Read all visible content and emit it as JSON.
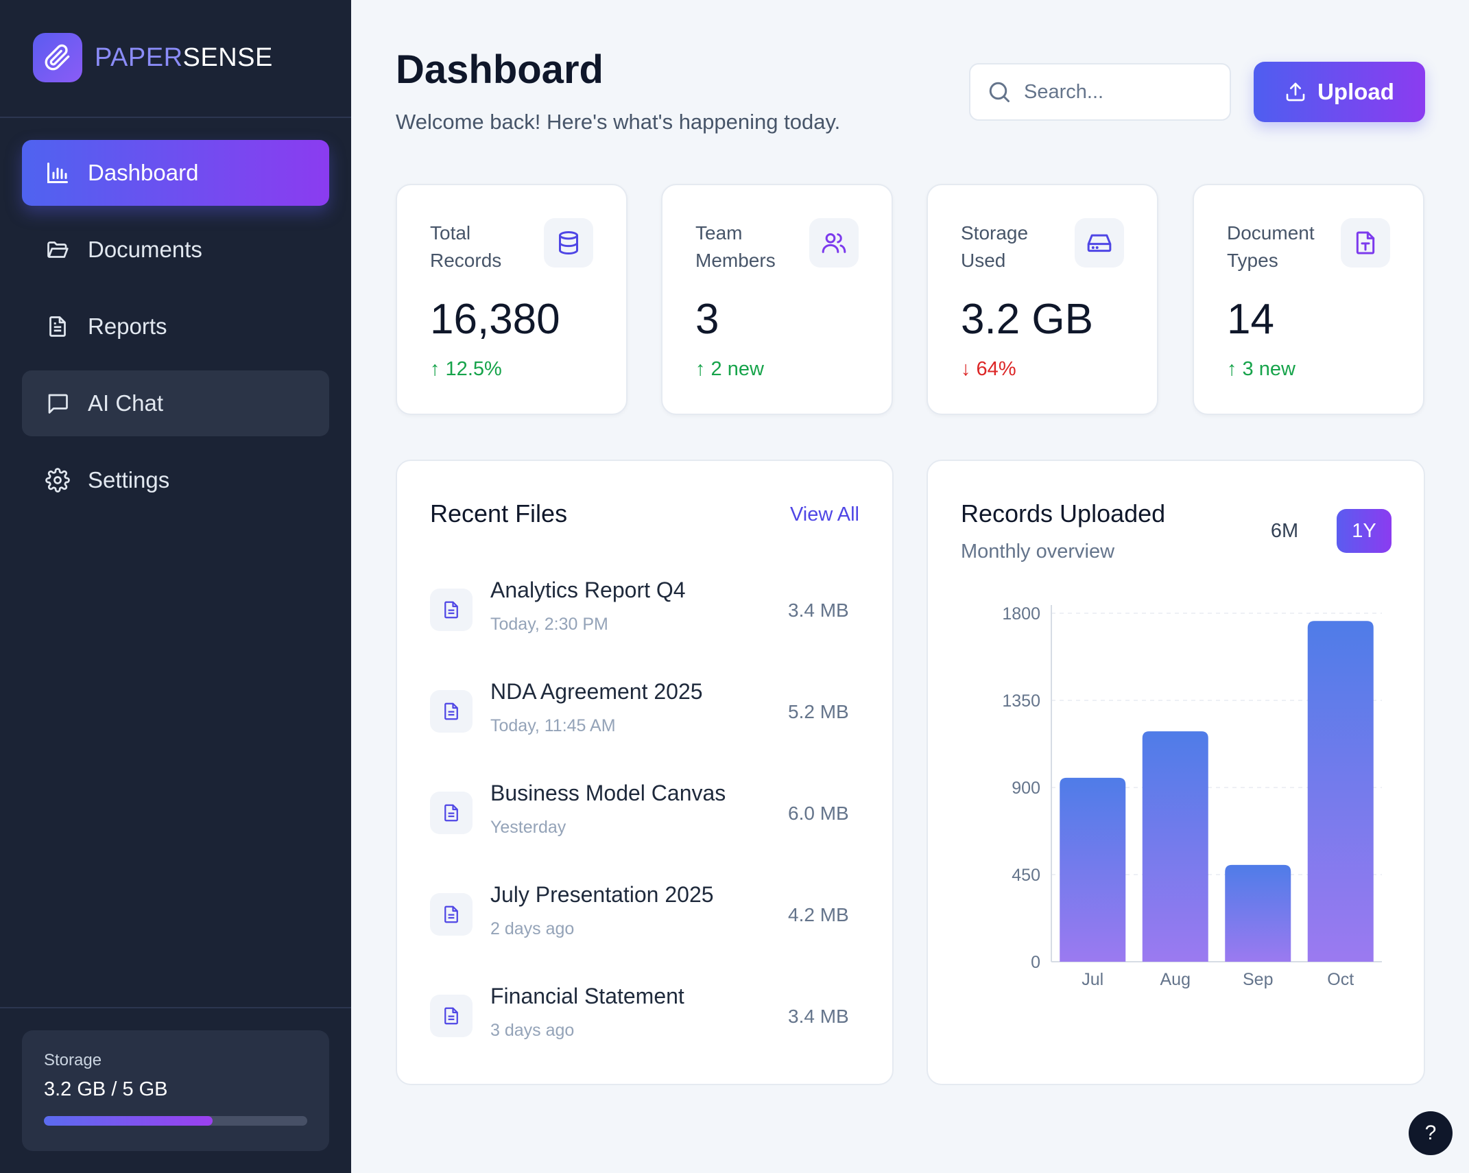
{
  "brand": {
    "part1": "PAPER",
    "part2": "SENSE"
  },
  "sidebar": {
    "items": [
      {
        "label": "Dashboard",
        "icon": "bar-chart-icon"
      },
      {
        "label": "Documents",
        "icon": "folder-icon"
      },
      {
        "label": "Reports",
        "icon": "file-text-icon"
      },
      {
        "label": "AI Chat",
        "icon": "message-icon"
      },
      {
        "label": "Settings",
        "icon": "gear-icon"
      }
    ],
    "storage": {
      "label": "Storage",
      "value": "3.2 GB / 5 GB",
      "used_fraction": 0.64
    }
  },
  "header": {
    "title": "Dashboard",
    "subtitle": "Welcome back! Here's what's happening today.",
    "search_placeholder": "Search...",
    "upload_label": "Upload"
  },
  "stats": [
    {
      "label": "Total Records",
      "value": "16,380",
      "delta": "↑ 12.5%",
      "trend": "up",
      "icon": "database-icon"
    },
    {
      "label": "Team Members",
      "value": "3",
      "delta": "↑ 2 new",
      "trend": "up",
      "icon": "users-icon"
    },
    {
      "label": "Storage Used",
      "value": "3.2 GB",
      "delta": "↓ 64%",
      "trend": "down",
      "icon": "hard-drive-icon"
    },
    {
      "label": "Document Types",
      "value": "14",
      "delta": "↑ 3 new",
      "trend": "up",
      "icon": "file-upload-icon"
    }
  ],
  "recent_files": {
    "title": "Recent Files",
    "view_all": "View All",
    "files": [
      {
        "name": "Analytics Report Q4",
        "time": "Today, 2:30 PM",
        "size": "3.4 MB"
      },
      {
        "name": "NDA Agreement 2025",
        "time": "Today, 11:45 AM",
        "size": "5.2 MB"
      },
      {
        "name": "Business Model Canvas",
        "time": "Yesterday",
        "size": "6.0 MB"
      },
      {
        "name": "July Presentation 2025",
        "time": "2 days ago",
        "size": "4.2 MB"
      },
      {
        "name": "Financial Statement",
        "time": "3 days ago",
        "size": "3.4 MB"
      }
    ]
  },
  "records_panel": {
    "title": "Records Uploaded",
    "subtitle": "Monthly overview",
    "range_options": [
      "6M",
      "1Y"
    ],
    "selected_range": "1Y"
  },
  "chart_data": {
    "type": "bar",
    "categories": [
      "Jul",
      "Aug",
      "Sep",
      "Oct"
    ],
    "values": [
      950,
      1190,
      500,
      1760
    ],
    "yticks": [
      0,
      450,
      900,
      1350,
      1800
    ],
    "ylim": [
      0,
      1800
    ],
    "grid": true,
    "colors": {
      "top": "#4f7ce8",
      "bottom": "#9b7af0"
    }
  },
  "help_label": "?",
  "colors": {
    "accent_start": "#4f63f0",
    "accent_end": "#8b3cf0",
    "sidebar_bg": "#1b2335",
    "up": "#16a34a",
    "down": "#dc2626"
  }
}
